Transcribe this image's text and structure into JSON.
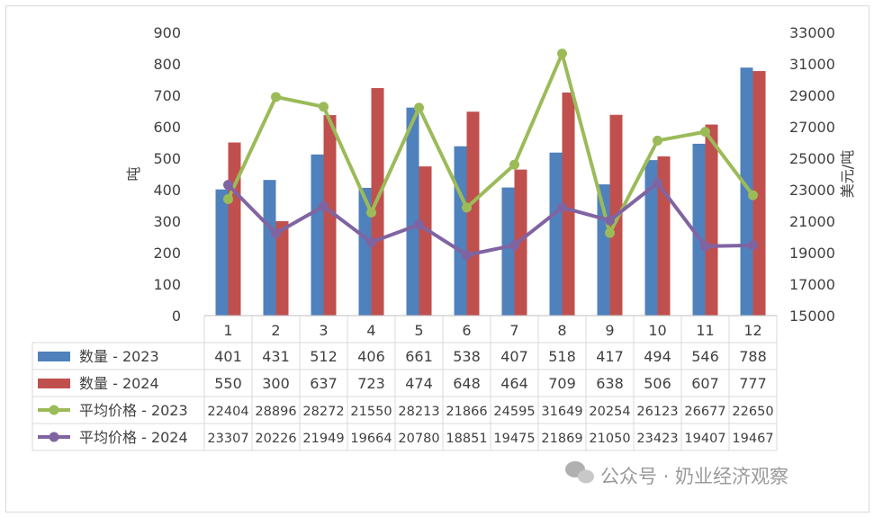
{
  "chart_data": {
    "type": "bar+line",
    "categories": [
      "1",
      "2",
      "3",
      "4",
      "5",
      "6",
      "7",
      "8",
      "9",
      "10",
      "11",
      "12"
    ],
    "y_left": {
      "label": "吨",
      "min": 0,
      "max": 900,
      "step": 100
    },
    "y_right": {
      "label": "美元/吨",
      "min": 15000,
      "max": 33000,
      "step": 2000
    },
    "bar_series": [
      {
        "name": "数量 - 2023",
        "color": "#4f81bd",
        "values": [
          401,
          431,
          512,
          406,
          661,
          538,
          407,
          518,
          417,
          494,
          546,
          788
        ]
      },
      {
        "name": "数量 - 2024",
        "color": "#c0504d",
        "values": [
          550,
          300,
          637,
          723,
          474,
          648,
          464,
          709,
          638,
          506,
          607,
          777
        ]
      }
    ],
    "line_series": [
      {
        "name": "平均价格 - 2023",
        "color": "#9bbb59",
        "values": [
          22404,
          28896,
          28272,
          21550,
          28213,
          21866,
          24595,
          31649,
          20254,
          26123,
          26677,
          22650
        ]
      },
      {
        "name": "平均价格 - 2024",
        "color": "#8064a2",
        "values": [
          23307,
          20226,
          21949,
          19664,
          20780,
          18851,
          19475,
          21869,
          21050,
          23423,
          19407,
          19467
        ]
      }
    ],
    "grid": false,
    "data_table": true
  },
  "watermark": {
    "text": "公众号 · 奶业经济观察"
  }
}
